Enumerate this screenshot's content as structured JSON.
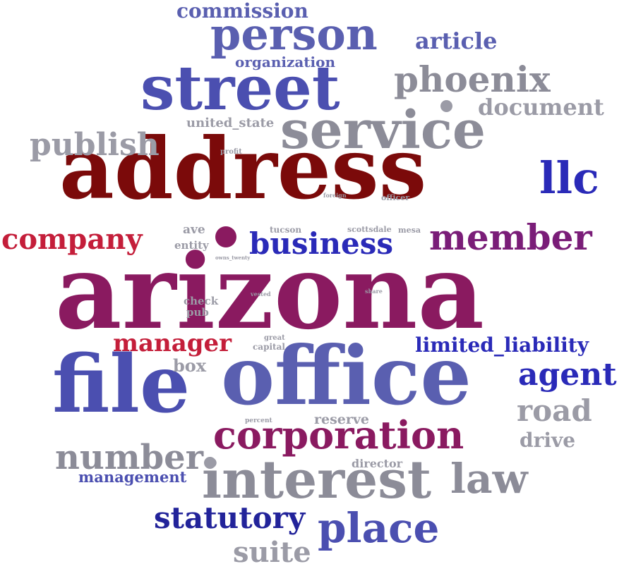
{
  "colors": {
    "maroon": "#7b0a0a",
    "crimson": "#c41e3a",
    "plum": "#8a1a60",
    "purple": "#7a1d78",
    "slate_blue": "#4b4fb0",
    "periwinkle": "#5a5fb0",
    "royal_blue": "#2a2ab8",
    "navy": "#22239a",
    "gray": "#8c8c98",
    "light_gray": "#9b9ba6"
  },
  "words": [
    {
      "text": "arizona",
      "color": "#8a1a60"
    },
    {
      "text": "address",
      "color": "#7b0a0a"
    },
    {
      "text": "office",
      "color": "#5a5fb0"
    },
    {
      "text": "file",
      "color": "#4b4fb0"
    },
    {
      "text": "street",
      "color": "#4b4fb0"
    },
    {
      "text": "service",
      "color": "#8c8c98"
    },
    {
      "text": "person",
      "color": "#5a5fb0"
    },
    {
      "text": "interest",
      "color": "#8c8c98"
    },
    {
      "text": "corporation",
      "color": "#8a1a60"
    },
    {
      "text": "phoenix",
      "color": "#8c8c98"
    },
    {
      "text": "member",
      "color": "#7a1d78"
    },
    {
      "text": "company",
      "color": "#c41e3a"
    },
    {
      "text": "business",
      "color": "#2a2ab8"
    },
    {
      "text": "place",
      "color": "#4b4fb0"
    },
    {
      "text": "number",
      "color": "#8c8c98"
    },
    {
      "text": "llc",
      "color": "#2a2ab8"
    },
    {
      "text": "law",
      "color": "#8c8c98"
    },
    {
      "text": "agent",
      "color": "#2a2ab8"
    },
    {
      "text": "road",
      "color": "#9b9ba6"
    },
    {
      "text": "statutory",
      "color": "#22239a"
    },
    {
      "text": "publish",
      "color": "#9b9ba6"
    },
    {
      "text": "suite",
      "color": "#9b9ba6"
    },
    {
      "text": "document",
      "color": "#9b9ba6"
    },
    {
      "text": "manager",
      "color": "#c41e3a"
    },
    {
      "text": "limited_liability",
      "color": "#2a2ab8"
    },
    {
      "text": "commission",
      "color": "#5a5fb0"
    },
    {
      "text": "article",
      "color": "#5a5fb0"
    },
    {
      "text": "drive",
      "color": "#9b9ba6"
    },
    {
      "text": "management",
      "color": "#4b4fb0"
    },
    {
      "text": "organization",
      "color": "#5a5fb0"
    },
    {
      "text": "box",
      "color": "#9b9ba6"
    },
    {
      "text": "united_state",
      "color": "#9b9ba6"
    },
    {
      "text": "reserve",
      "color": "#9b9ba6"
    },
    {
      "text": "director",
      "color": "#9b9ba6"
    },
    {
      "text": "ave",
      "color": "#9b9ba6"
    },
    {
      "text": "entity",
      "color": "#9b9ba6"
    },
    {
      "text": "check",
      "color": "#9b9ba6"
    },
    {
      "text": "pub",
      "color": "#9b9ba6"
    },
    {
      "text": "tucson",
      "color": "#9b9ba6"
    },
    {
      "text": "scottsdale",
      "color": "#9b9ba6"
    },
    {
      "text": "mesa",
      "color": "#9b9ba6"
    },
    {
      "text": "capital",
      "color": "#9b9ba6"
    },
    {
      "text": "great",
      "color": "#9b9ba6"
    },
    {
      "text": "officer",
      "color": "#9b9ba6"
    },
    {
      "text": "profit",
      "color": "#9b9ba6"
    },
    {
      "text": "foreign",
      "color": "#9b9ba6"
    },
    {
      "text": "owns_twenty",
      "color": "#9b9ba6"
    },
    {
      "text": "vested",
      "color": "#9b9ba6"
    },
    {
      "text": "share",
      "color": "#9b9ba6"
    },
    {
      "text": "percent",
      "color": "#9b9ba6"
    }
  ],
  "dots": [
    {
      "color": "#8a1a60"
    },
    {
      "color": "#9b9ba6"
    },
    {
      "color": "#9b9ba6"
    }
  ]
}
